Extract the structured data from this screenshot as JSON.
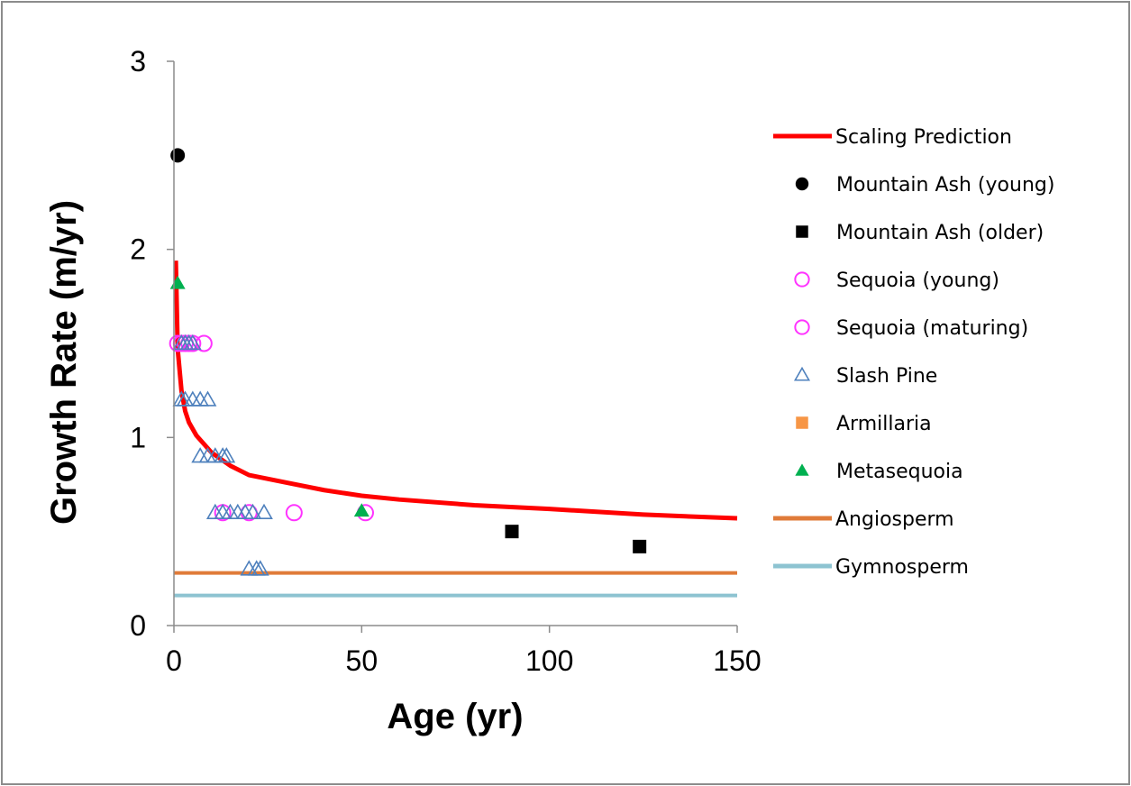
{
  "chart_data": {
    "type": "scatter",
    "title": "",
    "xlabel": "Age (yr)",
    "ylabel": "Growth Rate (m/yr)",
    "xlim": [
      0,
      150
    ],
    "ylim": [
      0,
      3
    ],
    "xticks": [
      0,
      50,
      100,
      150
    ],
    "yticks": [
      0,
      1,
      2,
      3
    ],
    "grid": false,
    "legend_position": "right",
    "series": [
      {
        "name": "Scaling Prediction",
        "kind": "line",
        "color": "#ff0000",
        "x": [
          0.5,
          1,
          2,
          3,
          4,
          6,
          10,
          15,
          20,
          30,
          40,
          50,
          60,
          80,
          100,
          125,
          150
        ],
        "y": [
          1.94,
          1.47,
          1.25,
          1.14,
          1.08,
          1.01,
          0.92,
          0.85,
          0.8,
          0.76,
          0.72,
          0.69,
          0.67,
          0.64,
          0.62,
          0.59,
          0.57
        ]
      },
      {
        "name": "Mountain Ash (young)",
        "kind": "marker",
        "marker": "circle-filled",
        "color": "#000000",
        "x": [
          1
        ],
        "y": [
          2.5
        ]
      },
      {
        "name": "Mountain Ash (older)",
        "kind": "marker",
        "marker": "square-filled",
        "color": "#000000",
        "x": [
          90,
          124
        ],
        "y": [
          0.5,
          0.42
        ]
      },
      {
        "name": "Sequoia (young)",
        "kind": "marker",
        "marker": "circle-open",
        "color": "#ff33ff",
        "x": [
          1,
          2,
          3,
          4,
          5,
          8
        ],
        "y": [
          1.5,
          1.5,
          1.5,
          1.5,
          1.5,
          1.5
        ]
      },
      {
        "name": "Sequoia (maturing)",
        "kind": "marker",
        "marker": "circle-open",
        "color": "#ff33ff",
        "x": [
          13,
          20,
          32,
          51
        ],
        "y": [
          0.6,
          0.6,
          0.6,
          0.6
        ]
      },
      {
        "name": "Slash Pine",
        "kind": "marker",
        "marker": "triangle-open",
        "color": "#4f81bd",
        "x": [
          2,
          3,
          4,
          5,
          2,
          3,
          5,
          7,
          9,
          7,
          9,
          11,
          13,
          14,
          11,
          13,
          15,
          17,
          19,
          21,
          24,
          20,
          22,
          23
        ],
        "y": [
          1.5,
          1.5,
          1.5,
          1.5,
          1.2,
          1.2,
          1.2,
          1.2,
          1.2,
          0.9,
          0.9,
          0.9,
          0.9,
          0.9,
          0.6,
          0.6,
          0.6,
          0.6,
          0.6,
          0.6,
          0.6,
          0.3,
          0.3,
          0.3
        ]
      },
      {
        "name": "Armillaria",
        "kind": "marker",
        "marker": "square-filled",
        "color": "#f79646",
        "x": [],
        "y": []
      },
      {
        "name": "Metasequoia",
        "kind": "marker",
        "marker": "triangle-filled",
        "color": "#00b050",
        "x": [
          1,
          50
        ],
        "y": [
          1.82,
          0.61
        ]
      },
      {
        "name": "Angiosperm",
        "kind": "line",
        "color": "#e07b39",
        "x": [
          0,
          150
        ],
        "y": [
          0.28,
          0.28
        ]
      },
      {
        "name": "Gymnosperm",
        "kind": "line",
        "color": "#8dc3d1",
        "x": [
          0,
          150
        ],
        "y": [
          0.16,
          0.16
        ]
      }
    ]
  }
}
